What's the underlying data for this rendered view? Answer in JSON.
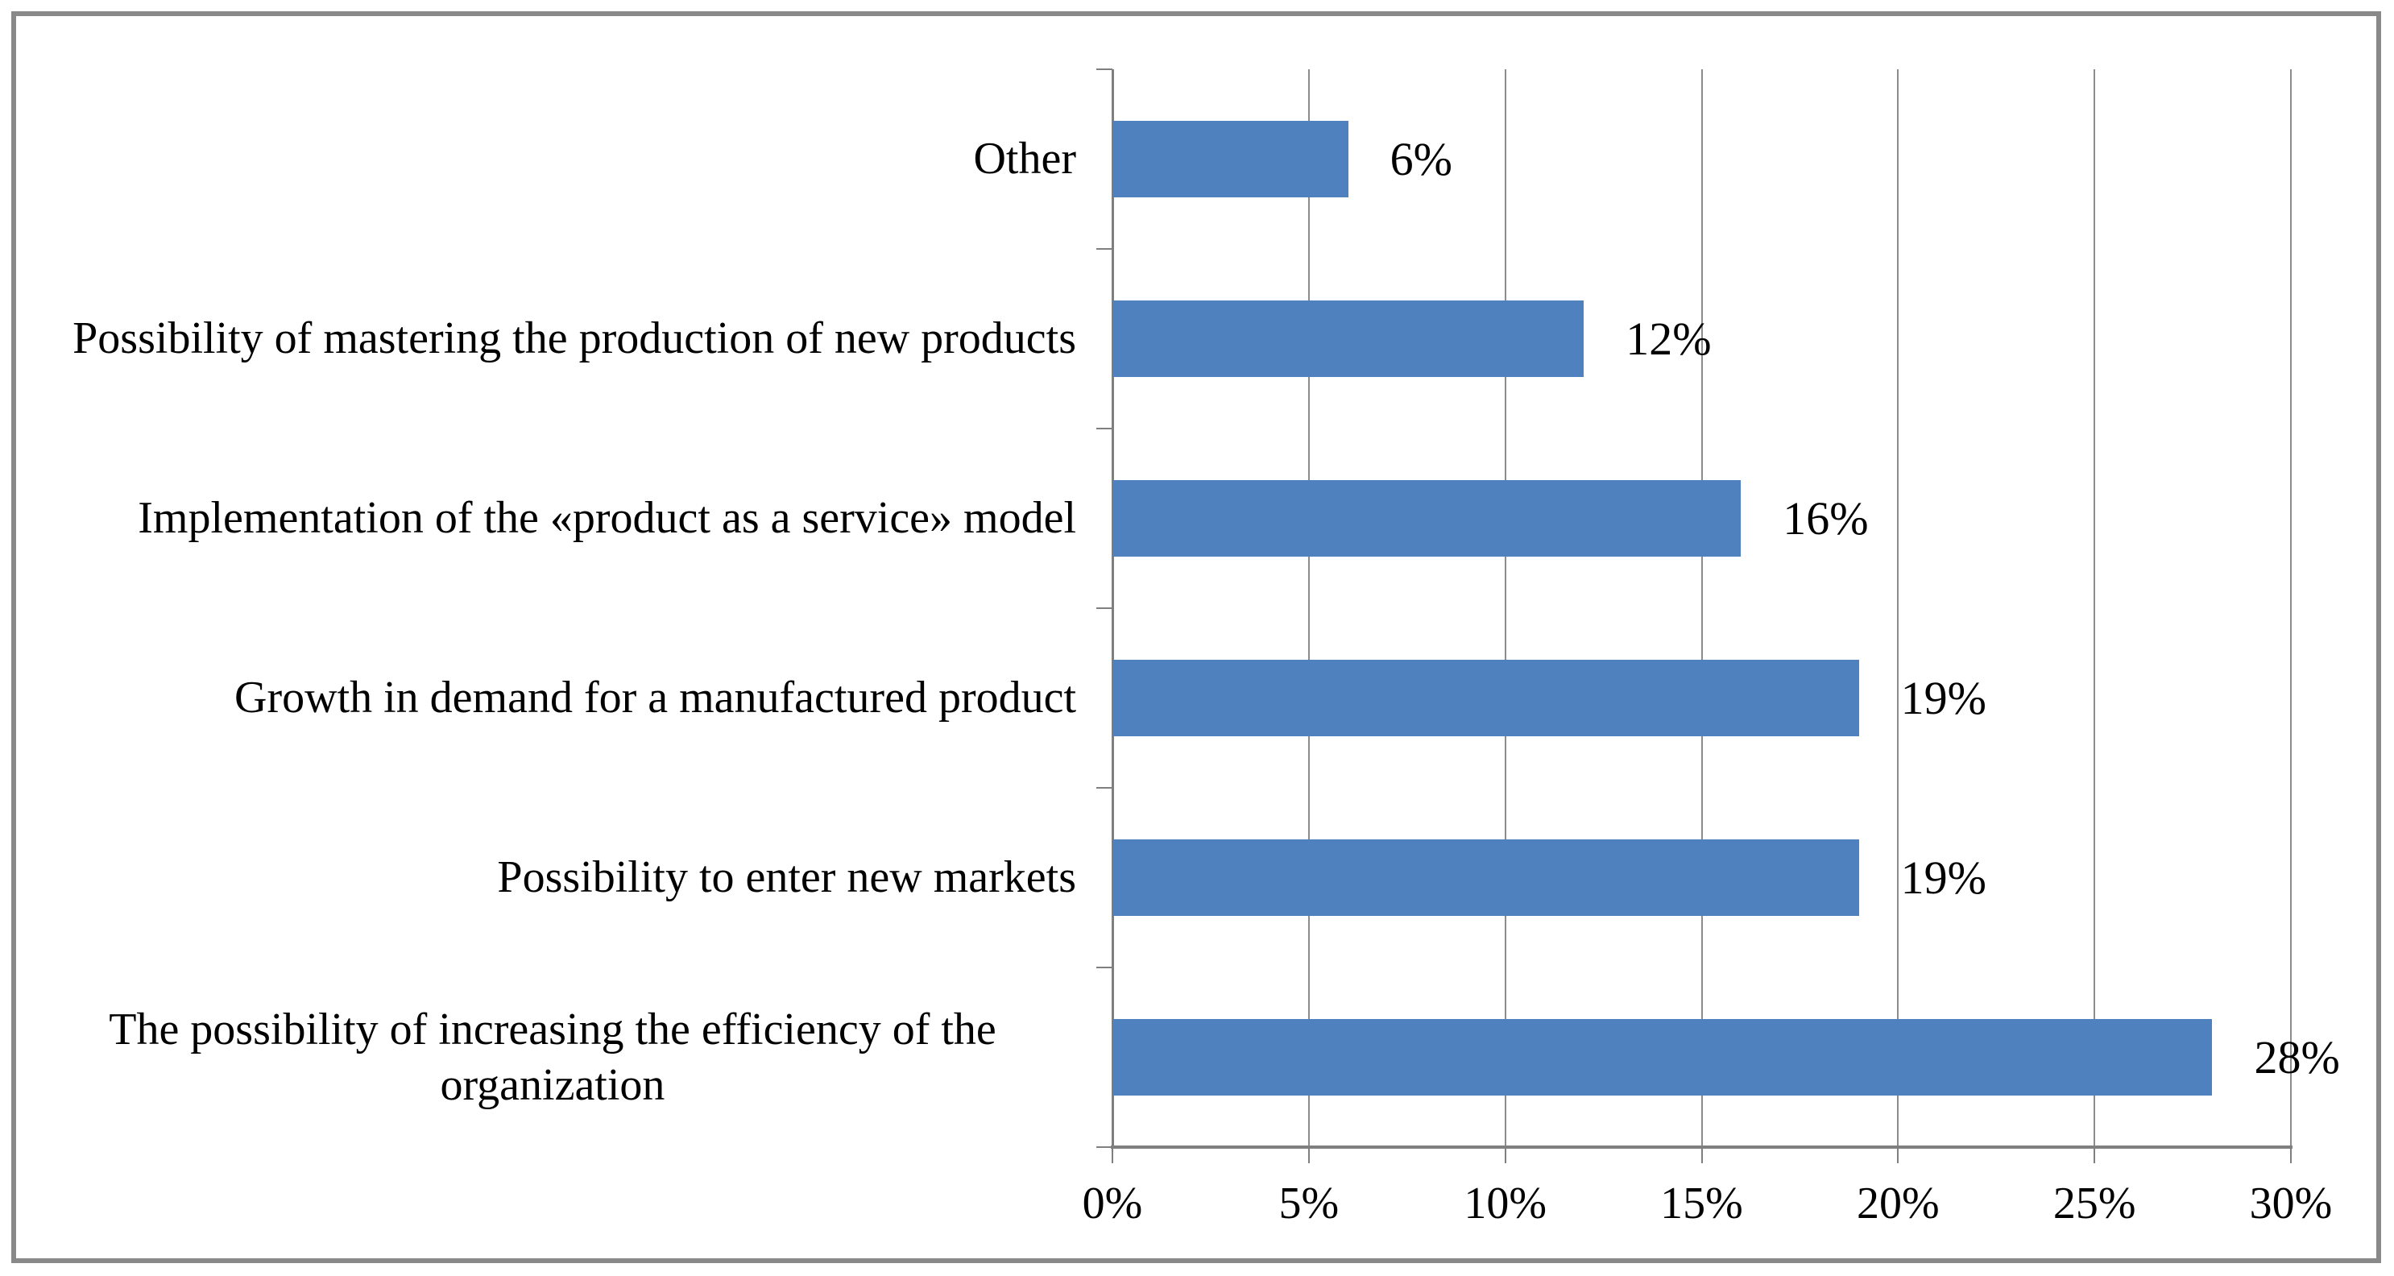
{
  "chart_data": {
    "type": "bar",
    "orientation": "horizontal",
    "title": "",
    "xlabel": "",
    "ylabel": "",
    "categories": [
      "Other",
      "Possibility of mastering the production of new products",
      "Implementation of the «product as a service» model",
      "Growth in demand for a manufactured product",
      "Possibility to enter new markets",
      "The possibility of increasing the efficiency of the organization"
    ],
    "values": [
      6,
      12,
      16,
      19,
      19,
      28
    ],
    "value_labels": [
      "6%",
      "12%",
      "16%",
      "19%",
      "19%",
      "28%"
    ],
    "x_ticks": [
      "0%",
      "5%",
      "10%",
      "15%",
      "20%",
      "25%",
      "30%"
    ],
    "x_tick_values": [
      0,
      5,
      10,
      15,
      20,
      25,
      30
    ],
    "xlim": [
      0,
      30
    ],
    "grid": "vertical-gridlines-on",
    "legend": "none",
    "colors": {
      "bar": "#4E81BD",
      "gridline": "#8C8C8C",
      "axis": "#7F7F7F",
      "text": "#000000",
      "frame_border": "#898989",
      "background": "#FFFFFF"
    }
  }
}
